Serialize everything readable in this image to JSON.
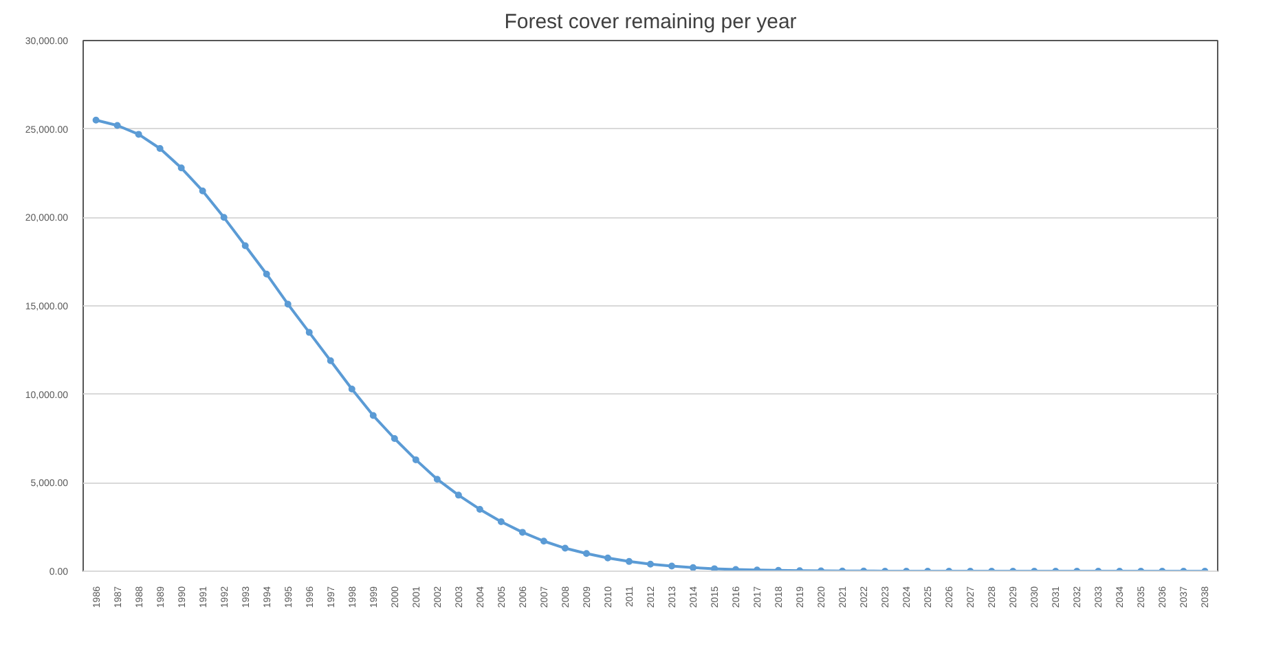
{
  "chart_data": {
    "type": "line",
    "title": "Forest cover remaining per year",
    "categories": [
      "1986",
      "1987",
      "1988",
      "1989",
      "1990",
      "1991",
      "1992",
      "1993",
      "1994",
      "1995",
      "1996",
      "1997",
      "1998",
      "1999",
      "2000",
      "2001",
      "2002",
      "2003",
      "2004",
      "2005",
      "2006",
      "2007",
      "2008",
      "2009",
      "2010",
      "2011",
      "2012",
      "2013",
      "2014",
      "2015",
      "2016",
      "2017",
      "2018",
      "2019",
      "2020",
      "2021",
      "2022",
      "2023",
      "2024",
      "2025",
      "2026",
      "2027",
      "2028",
      "2029",
      "2030",
      "2031",
      "2032",
      "2033",
      "2034",
      "2035",
      "2036",
      "2037",
      "2038"
    ],
    "series": [
      {
        "color": "#5b9bd5",
        "values": [
          25500,
          25200,
          24700,
          23900,
          22800,
          21500,
          20000,
          18400,
          16800,
          15100,
          13500,
          11900,
          10300,
          8800,
          7500,
          6300,
          5200,
          4300,
          3500,
          2800,
          2200,
          1700,
          1300,
          1000,
          750,
          550,
          400,
          290,
          200,
          140,
          100,
          70,
          50,
          30,
          20,
          10,
          10,
          0,
          0,
          0,
          0,
          0,
          0,
          0,
          0,
          0,
          0,
          0,
          0,
          0,
          0,
          0,
          0
        ]
      }
    ],
    "ylim": [
      0,
      30000
    ],
    "yticks": [
      {
        "value": 0,
        "label": "0.00"
      },
      {
        "value": 5000,
        "label": "5,000.00"
      },
      {
        "value": 10000,
        "label": "10,000.00"
      },
      {
        "value": 15000,
        "label": "15,000.00"
      },
      {
        "value": 20000,
        "label": "20,000.00"
      },
      {
        "value": 25000,
        "label": "25,000.00"
      },
      {
        "value": 30000,
        "label": "30,000.00"
      }
    ],
    "grid": "y",
    "marker": "circle",
    "line_style": "solid"
  }
}
